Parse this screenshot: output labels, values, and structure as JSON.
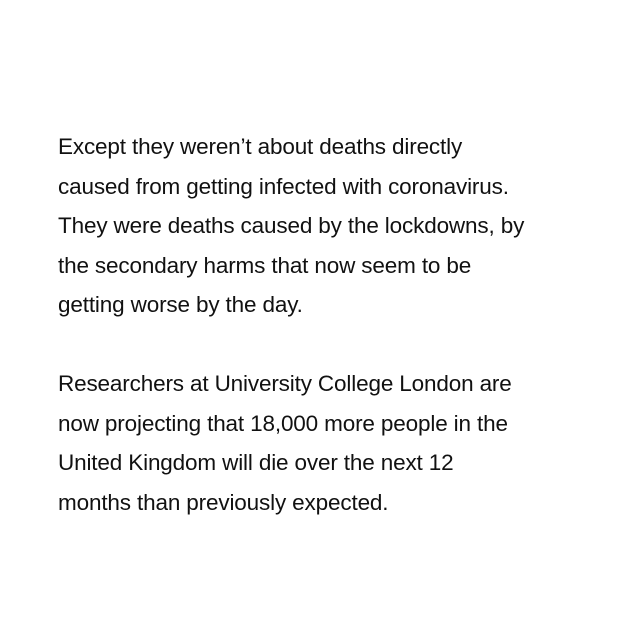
{
  "paragraphs": [
    {
      "lines": [
        "Except they weren’t about deaths directly",
        "caused from getting infected with coronavirus.",
        "They were deaths caused by the lockdowns, by",
        "the secondary harms that now seem to be",
        "getting worse by the day."
      ]
    },
    {
      "lines": [
        "Researchers at University College London are",
        "now projecting that 18,000 more people in the",
        "United Kingdom will die over the next 12",
        "months than previously expected."
      ]
    }
  ]
}
